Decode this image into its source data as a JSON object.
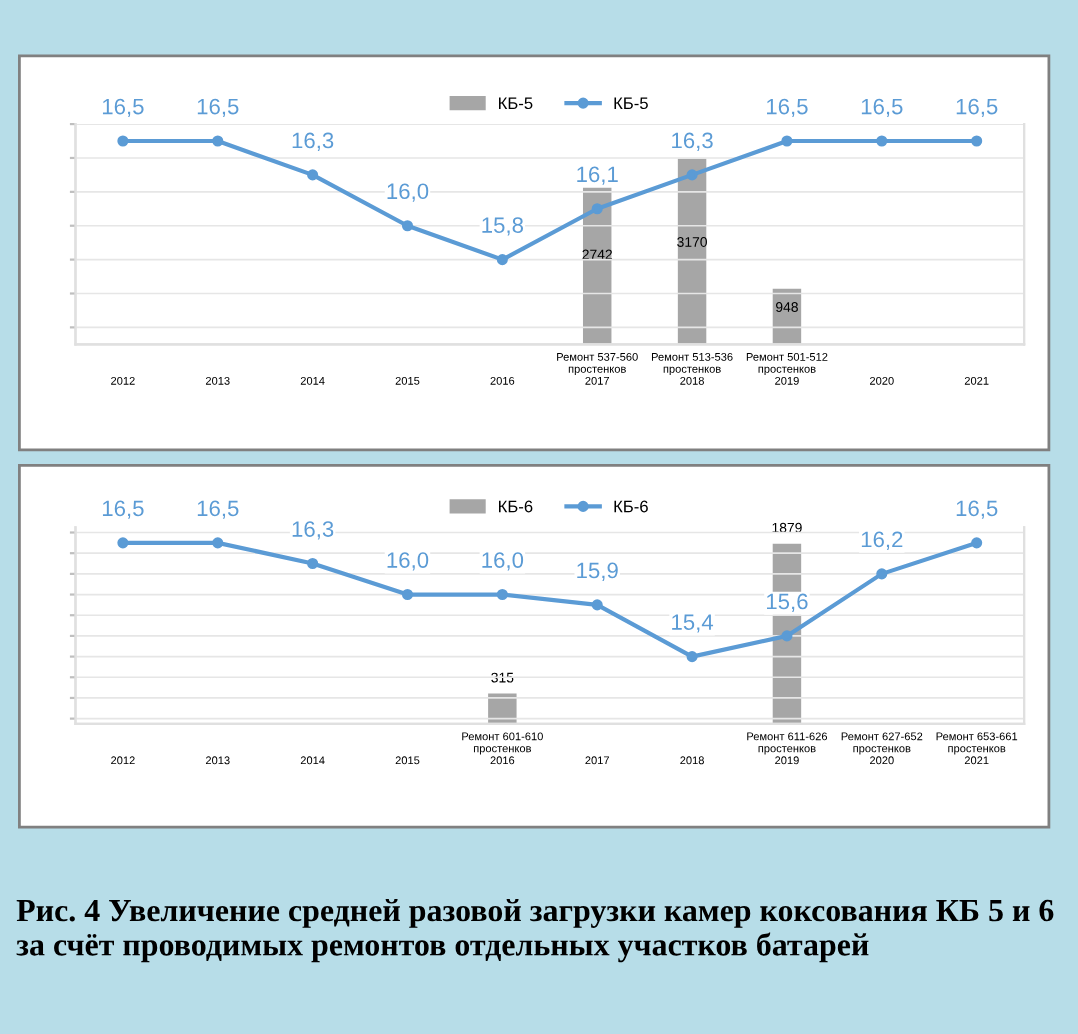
{
  "chart_data": [
    {
      "type": "bar",
      "categories": [
        "2012",
        "2013",
        "2014",
        "2015",
        "2016",
        "Ремонт 537-560\nпростенков\n2017",
        "Ремонт 513-536\nпростенков\n2018",
        "Ремонт 501-512\nпростенков\n2019",
        "2020",
        "2021"
      ],
      "series": [
        {
          "name": "КБ-5",
          "axis": "y2",
          "color": "#a6a6a6",
          "values": [
            null,
            null,
            null,
            null,
            null,
            2742,
            3170,
            948,
            null,
            null
          ],
          "value_labels": [
            null,
            null,
            null,
            null,
            null,
            "2742",
            "3170",
            "948",
            null,
            null
          ]
        },
        {
          "name": "КБ-5",
          "type": "line",
          "color": "#5b9bd5",
          "marker": "circle",
          "values": [
            16.5,
            16.5,
            16.3,
            16.0,
            15.8,
            16.1,
            16.3,
            16.5,
            16.5,
            16.5
          ],
          "value_labels": [
            "16,5",
            "16,5",
            "16,3",
            "16,0",
            "15,8",
            "16,1",
            "16,3",
            "16,5",
            "16,5",
            "16,5"
          ]
        }
      ],
      "ylim": [
        15.3,
        16.6
      ],
      "yticks": [
        {
          "value": 15.4,
          "label": null
        },
        {
          "value": 15.6,
          "label": null
        },
        {
          "value": 15.8,
          "label": null
        },
        {
          "value": 16.0,
          "label": null
        },
        {
          "value": 16.2,
          "label": null
        },
        {
          "value": 16.4,
          "label": null
        },
        {
          "value": 16.6,
          "label": null
        }
      ],
      "y2lim": [
        0,
        3760
      ],
      "tick_labels": "x",
      "grid": "y",
      "legend": "top"
    },
    {
      "type": "bar",
      "categories": [
        "2012",
        "2013",
        "2014",
        "2015",
        "Ремонт 601-610\nпростенков\n2016",
        "2017",
        "2018",
        "Ремонт 611-626\nпростенков\n2019",
        "Ремонт 627-652\nпростенков\n2020",
        "Ремонт 653-661\nпростенков\n2021"
      ],
      "series": [
        {
          "name": "КБ-6",
          "axis": "y2",
          "color": "#a6a6a6",
          "values": [
            null,
            null,
            null,
            null,
            315,
            null,
            null,
            1879,
            null,
            null
          ],
          "value_labels": [
            null,
            null,
            null,
            null,
            "315",
            null,
            null,
            "1879",
            null,
            null
          ]
        },
        {
          "name": "КБ-6",
          "type": "line",
          "color": "#5b9bd5",
          "marker": "circle",
          "values": [
            16.5,
            16.5,
            16.3,
            16.0,
            16.0,
            15.9,
            15.4,
            15.6,
            16.2,
            16.5
          ],
          "value_labels": [
            "16,5",
            "16,5",
            "16,3",
            "16,0",
            "16,0",
            "15,9",
            "15,4",
            "15,6",
            "16,2",
            "16,5"
          ]
        }
      ],
      "ylim": [
        14.75,
        16.65
      ],
      "yticks": [
        {
          "value": 14.8,
          "label": null
        },
        {
          "value": 15.0,
          "label": null
        },
        {
          "value": 15.2,
          "label": null
        },
        {
          "value": 15.4,
          "label": null
        },
        {
          "value": 15.6,
          "label": null
        },
        {
          "value": 15.8,
          "label": null
        },
        {
          "value": 16.0,
          "label": null
        },
        {
          "value": 16.2,
          "label": null
        },
        {
          "value": 16.4,
          "label": null
        },
        {
          "value": 16.6,
          "label": null
        }
      ],
      "y2lim": [
        0,
        2050
      ],
      "tick_labels": "x",
      "grid": "y",
      "legend": "top",
      "annotations": [
        "Рис. 4 Увеличение средней разовой загрузки камер коксования КБ 5 и 6 за счёт проводимых ремонтов отдельных участков батарей"
      ]
    }
  ]
}
